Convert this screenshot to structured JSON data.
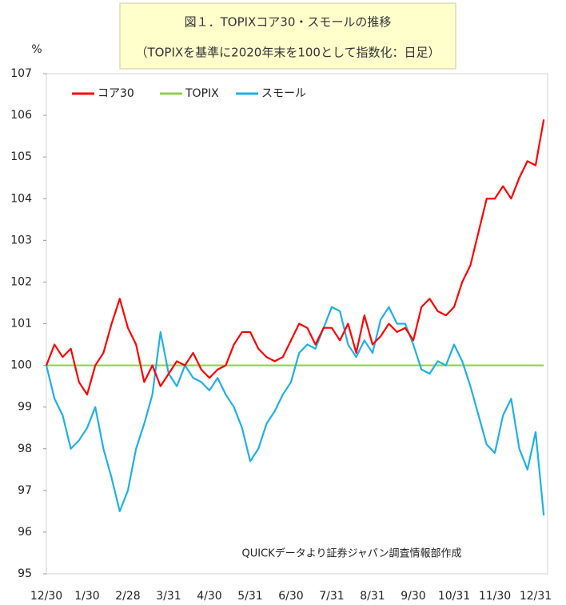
{
  "chart_data": {
    "type": "line",
    "title": "図１．TOPIXコア30・スモールの推移",
    "subtitle": "（TOPIXを基準に2020年末を100として指数化：日足）",
    "y_label": "%",
    "annotation": "QUICKデータより証券ジャパン調査情報部作成",
    "categories": [
      "12/30",
      null,
      null,
      null,
      null,
      "1/30",
      null,
      null,
      null,
      null,
      "2/28",
      null,
      null,
      null,
      null,
      "3/31",
      null,
      null,
      null,
      null,
      "4/30",
      null,
      null,
      null,
      null,
      "5/31",
      null,
      null,
      null,
      null,
      "6/30",
      null,
      null,
      null,
      null,
      "7/31",
      null,
      null,
      null,
      null,
      "8/31",
      null,
      null,
      null,
      null,
      "9/30",
      null,
      null,
      null,
      null,
      "10/31",
      null,
      null,
      null,
      null,
      "11/30",
      null,
      null,
      null,
      null,
      "12/31",
      null
    ],
    "series": [
      {
        "name": "コア30",
        "color": "#ff0000",
        "values": [
          100,
          100.5,
          100.2,
          100.4,
          99.6,
          99.3,
          100.0,
          100.3,
          101.0,
          101.6,
          100.9,
          100.5,
          99.6,
          100.0,
          99.5,
          99.8,
          100.1,
          100.0,
          100.3,
          99.9,
          99.7,
          99.9,
          100.0,
          100.5,
          100.8,
          100.8,
          100.4,
          100.2,
          100.1,
          100.2,
          100.6,
          101.0,
          100.9,
          100.5,
          100.9,
          100.9,
          100.6,
          101.0,
          100.3,
          101.2,
          100.5,
          100.7,
          101.0,
          100.8,
          100.9,
          100.6,
          101.4,
          101.6,
          101.3,
          101.2,
          101.4,
          102.0,
          102.4,
          103.2,
          104.0,
          104.0,
          104.3,
          104.0,
          104.5,
          104.9,
          104.8,
          105.9
        ]
      },
      {
        "name": "TOPIX",
        "color": "#92d050",
        "values": [
          100,
          100,
          100,
          100,
          100,
          100,
          100,
          100,
          100,
          100,
          100,
          100,
          100,
          100,
          100,
          100,
          100,
          100,
          100,
          100,
          100,
          100,
          100,
          100,
          100,
          100,
          100,
          100,
          100,
          100,
          100,
          100,
          100,
          100,
          100,
          100,
          100,
          100,
          100,
          100,
          100,
          100,
          100,
          100,
          100,
          100,
          100,
          100,
          100,
          100,
          100,
          100,
          100,
          100,
          100,
          100,
          100,
          100,
          100,
          100,
          100,
          100
        ]
      },
      {
        "name": "スモール",
        "color": "#1fb0e8",
        "values": [
          100,
          99.2,
          98.8,
          98.0,
          98.2,
          98.5,
          99.0,
          98.0,
          97.3,
          96.5,
          97.0,
          98.0,
          98.6,
          99.3,
          100.8,
          99.8,
          99.5,
          100.0,
          99.7,
          99.6,
          99.4,
          99.7,
          99.3,
          99.0,
          98.5,
          97.7,
          98.0,
          98.6,
          98.9,
          99.3,
          99.6,
          100.3,
          100.5,
          100.4,
          100.9,
          101.4,
          101.3,
          100.5,
          100.2,
          100.6,
          100.3,
          101.1,
          101.4,
          101.0,
          101.0,
          100.5,
          99.9,
          99.8,
          100.1,
          100.0,
          100.5,
          100.1,
          99.5,
          98.8,
          98.1,
          97.9,
          98.8,
          99.2,
          98.0,
          97.5,
          98.4,
          96.4
        ]
      }
    ],
    "ylim": [
      95,
      107
    ],
    "yticks": [
      95,
      96,
      97,
      98,
      99,
      100,
      101,
      102,
      103,
      104,
      105,
      106,
      107
    ],
    "legend": "top-left"
  }
}
